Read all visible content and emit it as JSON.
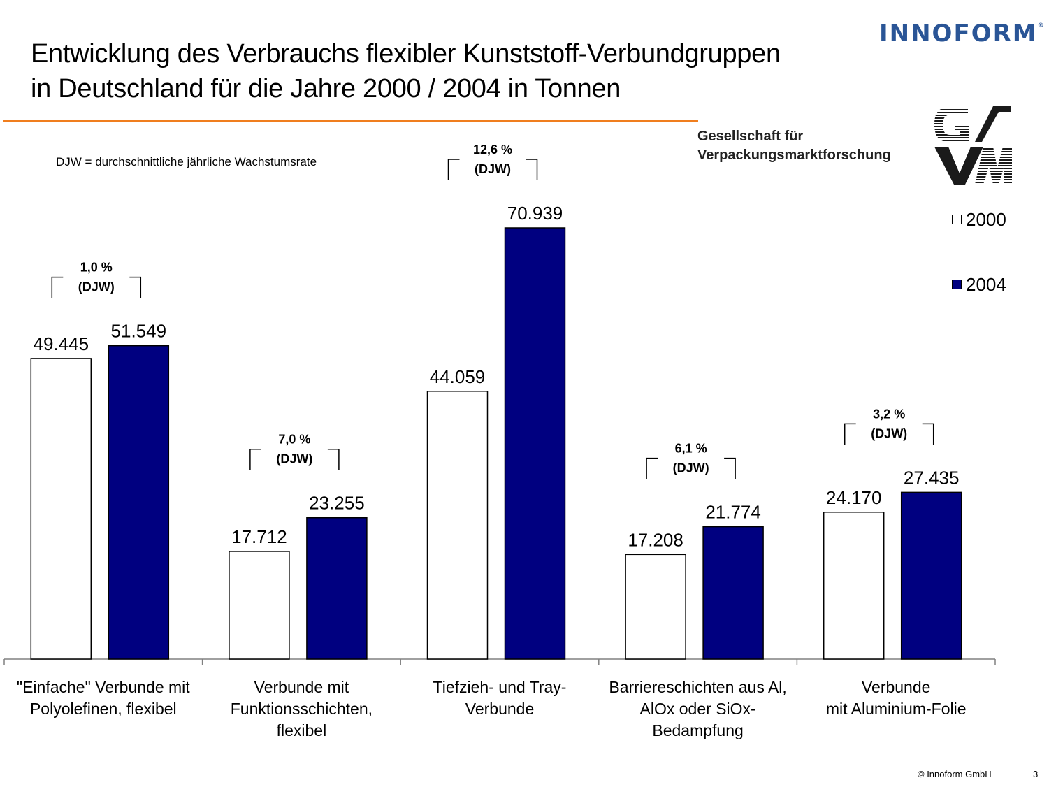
{
  "header": {
    "title_line1": "Entwicklung des Verbrauchs flexibler Kunststoff-Verbundgruppen",
    "title_line2": "in Deutschland für die Jahre 2000 / 2004 in Tonnen",
    "logo_text": "INNOFORM",
    "logo_mark": "®",
    "gvm_line1": "Gesellschaft für",
    "gvm_line2": "Verpackungsmarktforschung",
    "gvm_logo_text": "GVM"
  },
  "note": "DJW = durchschnittliche jährliche Wachstumsrate",
  "footer": {
    "copyright": "© Innoform GmbH",
    "page": "3"
  },
  "colors": {
    "accent_rule": "#f07e1e",
    "series_2000": "#ffffff",
    "series_2004": "#000080",
    "logo": "#2a5596"
  },
  "chart_data": {
    "type": "bar",
    "categories": [
      [
        "\"Einfache\" Verbunde mit",
        "Polyolefinen, flexibel"
      ],
      [
        "Verbunde mit",
        "Funktionsschichten,",
        "flexibel"
      ],
      [
        "Tiefzieh- und Tray-",
        "Verbunde"
      ],
      [
        "Barriereschichten aus Al,",
        "AlOx oder SiOx-",
        "Bedampfung"
      ],
      [
        "Verbunde",
        "mit Aluminium-Folie"
      ]
    ],
    "series": [
      {
        "name": "2000",
        "values": [
          49445,
          17712,
          44059,
          17208,
          24170
        ],
        "labels": [
          "49.445",
          "17.712",
          "44.059",
          "17.208",
          "24.170"
        ]
      },
      {
        "name": "2004",
        "values": [
          51549,
          23255,
          70939,
          21774,
          27435
        ],
        "labels": [
          "51.549",
          "23.255",
          "70.939",
          "21.774",
          "27.435"
        ]
      }
    ],
    "growth": [
      {
        "rate": "1,0 %",
        "unit": "(DJW)"
      },
      {
        "rate": "7,0 %",
        "unit": "(DJW)"
      },
      {
        "rate": "12,6 %",
        "unit": "(DJW)"
      },
      {
        "rate": "6,1 %",
        "unit": "(DJW)"
      },
      {
        "rate": "3,2 %",
        "unit": "(DJW)"
      }
    ],
    "ylim": [
      0,
      80000
    ],
    "legend_position": "right",
    "grid": false
  }
}
